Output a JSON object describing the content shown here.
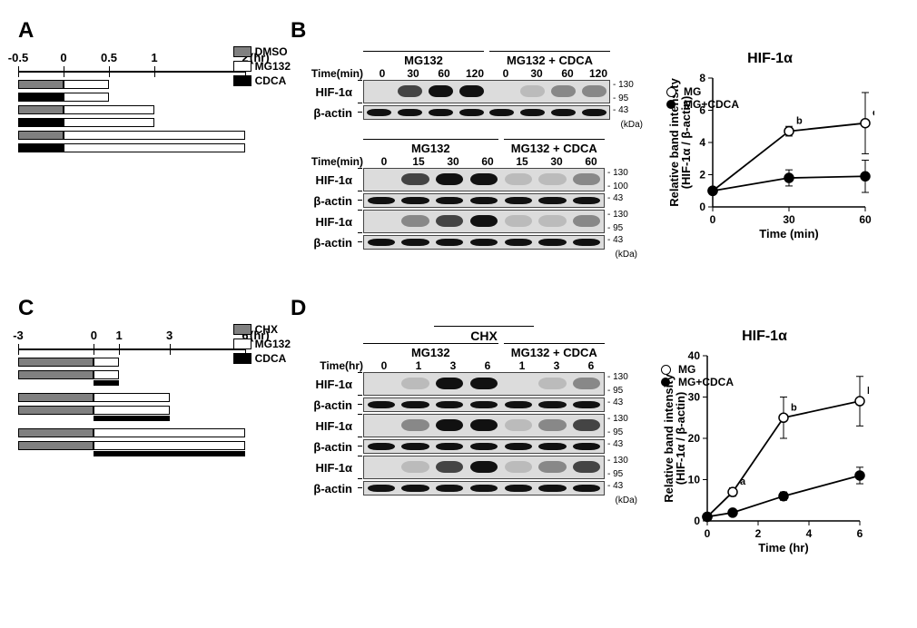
{
  "panelA": {
    "label": "A",
    "axis": {
      "ticks": [
        -0.5,
        0,
        0.5,
        1,
        2
      ],
      "unit": "(hr)"
    },
    "legend": [
      {
        "key": "DMSO",
        "color": "#808080"
      },
      {
        "key": "MG132",
        "color": "#ffffff"
      },
      {
        "key": "CDCA",
        "color": "#000000"
      }
    ],
    "segment_border": "#000000"
  },
  "panelB": {
    "label": "B",
    "block1": {
      "groups": [
        "MG132",
        "MG132 + CDCA"
      ],
      "time_label": "Time(min)",
      "times": [
        0,
        30,
        60,
        120,
        0,
        30,
        60,
        120
      ],
      "rows": [
        {
          "name": "HIF-1α",
          "mw": [
            130,
            95
          ],
          "bands": [
            "none",
            "med",
            "strong",
            "strong",
            "none",
            "faint",
            "weak",
            "weak"
          ]
        },
        {
          "name": "β-actin",
          "mw": [
            43
          ],
          "bands": [
            "strong",
            "strong",
            "strong",
            "strong",
            "strong",
            "strong",
            "strong",
            "strong"
          ]
        }
      ],
      "kda": "(kDa)"
    },
    "block2": {
      "groups": [
        "MG132",
        "MG132 + CDCA"
      ],
      "time_label": "Time(min)",
      "times": [
        0,
        15,
        30,
        60,
        15,
        30,
        60
      ],
      "rows": [
        {
          "name": "HIF-1α",
          "mw": [
            130,
            100
          ],
          "bands": [
            "none",
            "med",
            "strong",
            "strong",
            "faint",
            "faint",
            "weak"
          ]
        },
        {
          "name": "β-actin",
          "mw": [
            43
          ],
          "bands": [
            "strong",
            "strong",
            "strong",
            "strong",
            "strong",
            "strong",
            "strong"
          ]
        },
        {
          "name": "HIF-1α",
          "mw": [
            130,
            95
          ],
          "bands": [
            "none",
            "weak",
            "med",
            "strong",
            "faint",
            "faint",
            "weak"
          ]
        },
        {
          "name": "β-actin",
          "mw": [
            43
          ],
          "bands": [
            "strong",
            "strong",
            "strong",
            "strong",
            "strong",
            "strong",
            "strong"
          ]
        }
      ],
      "kda": "(kDa)"
    },
    "graph": {
      "title": "HIF-1α",
      "ylabel": "Relative band intensity\n(HIF-1α / β-actin)",
      "xlabel": "Time (min)",
      "series": [
        {
          "name": "MG",
          "marker": "open",
          "x": [
            0,
            30,
            60
          ],
          "y": [
            1,
            4.7,
            5.2
          ],
          "err": [
            0,
            0.3,
            1.9
          ],
          "ann": [
            "",
            "b",
            "e"
          ]
        },
        {
          "name": "MG+CDCA",
          "marker": "fill",
          "x": [
            0,
            30,
            60
          ],
          "y": [
            1,
            1.8,
            1.9
          ],
          "err": [
            0,
            0.5,
            1.0
          ],
          "ann": [
            "",
            "",
            ""
          ]
        }
      ],
      "ylim": [
        0,
        8
      ],
      "ytick_step": 2,
      "xlim": [
        0,
        60
      ],
      "xtick_step": 30,
      "colors": {
        "line": "#000000",
        "open_fill": "#ffffff",
        "fill": "#000000",
        "axis": "#000000"
      },
      "font_size": 12
    }
  },
  "panelC": {
    "label": "C",
    "axis": {
      "ticks": [
        -3,
        0,
        1,
        3,
        6
      ],
      "unit": "(hr)"
    },
    "legend": [
      {
        "key": "CHX",
        "color": "#808080"
      },
      {
        "key": "MG132",
        "color": "#ffffff"
      },
      {
        "key": "CDCA",
        "color": "#000000"
      }
    ],
    "segment_border": "#000000"
  },
  "panelD": {
    "label": "D",
    "super_label": "CHX",
    "block": {
      "groups": [
        "MG132",
        "MG132 + CDCA"
      ],
      "time_label": "Time(hr)",
      "times": [
        0,
        1,
        3,
        6,
        1,
        3,
        6
      ],
      "rows": [
        {
          "name": "HIF-1α",
          "mw": [
            130,
            95
          ],
          "bands": [
            "none",
            "faint",
            "strong",
            "strong",
            "none",
            "faint",
            "weak"
          ]
        },
        {
          "name": "β-actin",
          "mw": [
            43
          ],
          "bands": [
            "strong",
            "strong",
            "strong",
            "strong",
            "strong",
            "strong",
            "strong"
          ]
        },
        {
          "name": "HIF-1α",
          "mw": [
            130,
            95
          ],
          "bands": [
            "none",
            "weak",
            "strong",
            "strong",
            "faint",
            "weak",
            "med"
          ]
        },
        {
          "name": "β-actin",
          "mw": [
            43
          ],
          "bands": [
            "strong",
            "strong",
            "strong",
            "strong",
            "strong",
            "strong",
            "strong"
          ]
        },
        {
          "name": "HIF-1α",
          "mw": [
            130,
            95
          ],
          "bands": [
            "none",
            "faint",
            "med",
            "strong",
            "faint",
            "weak",
            "med"
          ]
        },
        {
          "name": "β-actin",
          "mw": [
            43
          ],
          "bands": [
            "strong",
            "strong",
            "strong",
            "strong",
            "strong",
            "strong",
            "strong"
          ]
        }
      ],
      "kda": "(kDa)"
    },
    "graph": {
      "title": "HIF-1α",
      "ylabel": "Relative band intensity\n(HIF-1α / β-actin)",
      "xlabel": "Time (hr)",
      "series": [
        {
          "name": "MG",
          "marker": "open",
          "x": [
            0,
            1,
            3,
            6
          ],
          "y": [
            1,
            7,
            25,
            29
          ],
          "err": [
            0,
            1,
            5,
            6
          ],
          "ann": [
            "",
            "a",
            "b",
            "b"
          ]
        },
        {
          "name": "MG+CDCA",
          "marker": "fill",
          "x": [
            0,
            1,
            3,
            6
          ],
          "y": [
            1,
            2,
            6,
            11
          ],
          "err": [
            0,
            0.5,
            1,
            2
          ],
          "ann": [
            "",
            "",
            "",
            ""
          ]
        }
      ],
      "ylim": [
        0,
        40
      ],
      "ytick_step": 10,
      "xlim": [
        0,
        6
      ],
      "xtick_step": 2,
      "colors": {
        "line": "#000000",
        "open_fill": "#ffffff",
        "fill": "#000000",
        "axis": "#000000"
      },
      "font_size": 12
    }
  }
}
